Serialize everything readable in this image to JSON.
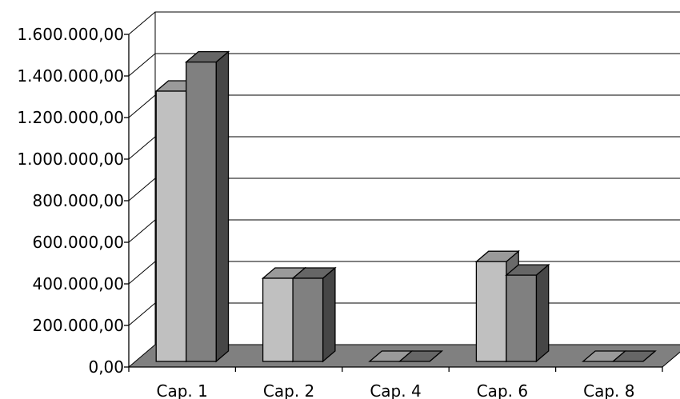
{
  "chart_data": {
    "type": "bar",
    "title": "",
    "xlabel": "",
    "ylabel": "",
    "categories": [
      "Cap. 1",
      "Cap. 2",
      "Cap. 4",
      "Cap. 6",
      "Cap. 8"
    ],
    "series": [
      {
        "values": [
          1300000,
          400000,
          0,
          480000,
          0
        ],
        "color": "#c0c0c0"
      },
      {
        "values": [
          1440000,
          400000,
          0,
          415000,
          0
        ],
        "color": "#808080"
      }
    ],
    "ylim": [
      0,
      1600000
    ],
    "yticks": [
      0,
      200000,
      400000,
      600000,
      800000,
      1000000,
      1200000,
      1400000,
      1600000
    ],
    "ytick_labels": [
      "0,00",
      "200.000,00",
      "400.000,00",
      "600.000,00",
      "800.000,00",
      "1.000.000,00",
      "1.200.000,00",
      "1.400.000,00",
      "1.600.000,00"
    ],
    "grid": true,
    "legend": "none",
    "style": "3d-clustered-column",
    "floor_color": "#808080"
  }
}
